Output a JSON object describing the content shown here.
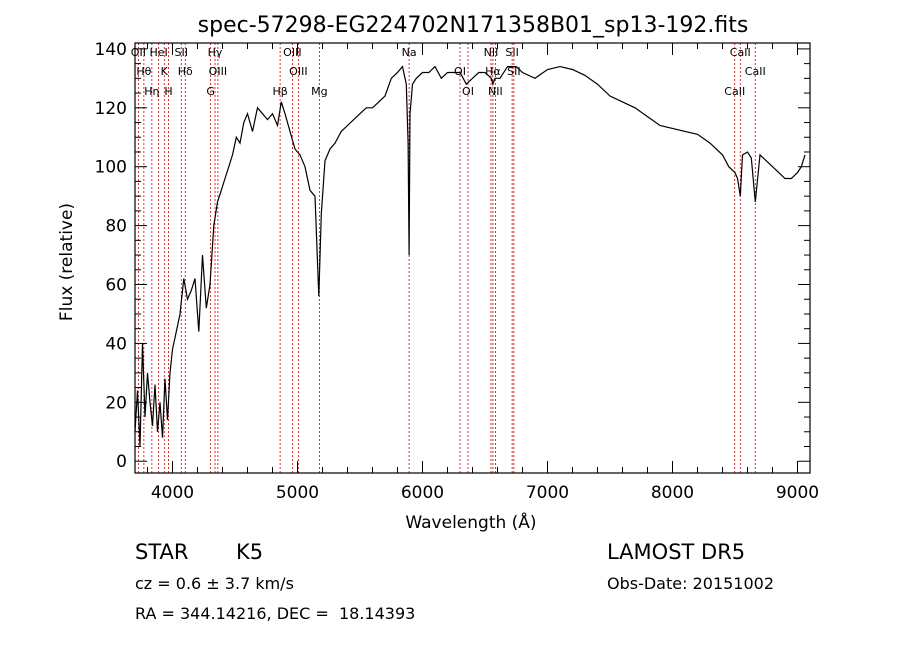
{
  "chart_data": {
    "type": "line",
    "title": "spec-57298-EG224702N171358B01_sp13-192.fits",
    "xlabel": "Wavelength (Å)",
    "ylabel": "Flux (relative)",
    "xlim": [
      3700,
      9100
    ],
    "ylim": [
      -4,
      142
    ],
    "x_ticks": [
      4000,
      5000,
      6000,
      7000,
      8000,
      9000
    ],
    "y_ticks": [
      0,
      20,
      40,
      60,
      80,
      100,
      120,
      140
    ],
    "grid": false,
    "series": [
      {
        "x": [
          3700,
          3720,
          3740,
          3760,
          3780,
          3800,
          3820,
          3840,
          3860,
          3880,
          3900,
          3920,
          3940,
          3960,
          3980,
          4000,
          4030,
          4060,
          4090,
          4120,
          4150,
          4180,
          4210,
          4240,
          4270,
          4300,
          4330,
          4360,
          4390,
          4420,
          4450,
          4480,
          4510,
          4540,
          4570,
          4600,
          4640,
          4680,
          4720,
          4760,
          4800,
          4840,
          4870,
          4900,
          4940,
          4980,
          5020,
          5060,
          5100,
          5140,
          5170,
          5190,
          5220,
          5260,
          5300,
          5350,
          5400,
          5450,
          5500,
          5550,
          5600,
          5650,
          5700,
          5750,
          5800,
          5840,
          5870,
          5885,
          5893,
          5900,
          5920,
          5950,
          6000,
          6050,
          6100,
          6150,
          6200,
          6250,
          6300,
          6350,
          6400,
          6450,
          6500,
          6550,
          6563,
          6580,
          6620,
          6680,
          6750,
          6800,
          6900,
          7000,
          7100,
          7200,
          7300,
          7400,
          7500,
          7600,
          7700,
          7800,
          7900,
          8000,
          8100,
          8200,
          8300,
          8400,
          8450,
          8500,
          8520,
          8542,
          8560,
          8600,
          8630,
          8662,
          8700,
          8750,
          8800,
          8850,
          8900,
          8950,
          9000,
          9030,
          9060
        ],
        "y": [
          10,
          24,
          5,
          40,
          15,
          30,
          20,
          12,
          26,
          10,
          20,
          8,
          28,
          14,
          30,
          38,
          44,
          50,
          62,
          55,
          58,
          62,
          44,
          70,
          52,
          60,
          80,
          88,
          92,
          96,
          100,
          104,
          110,
          108,
          115,
          118,
          112,
          120,
          118,
          116,
          118,
          114,
          122,
          118,
          112,
          106,
          104,
          100,
          92,
          90,
          56,
          84,
          102,
          106,
          108,
          112,
          114,
          116,
          118,
          120,
          120,
          122,
          124,
          130,
          132,
          134,
          128,
          108,
          70,
          118,
          128,
          130,
          132,
          132,
          134,
          130,
          132,
          132,
          132,
          128,
          130,
          132,
          132,
          130,
          128,
          130,
          130,
          134,
          134,
          132,
          130,
          133,
          134,
          133,
          131,
          128,
          124,
          122,
          120,
          117,
          114,
          113,
          112,
          111,
          108,
          104,
          100,
          98,
          96,
          90,
          104,
          105,
          103,
          88,
          104,
          102,
          100,
          98,
          96,
          96,
          98,
          100,
          104
        ]
      }
    ],
    "line_markers": [
      {
        "label": "OII",
        "x": 3727
      },
      {
        "label": "Hθ",
        "x": 3771
      },
      {
        "label": "Hη",
        "x": 3835
      },
      {
        "label": "HeI",
        "x": 3889
      },
      {
        "label": "K",
        "x": 3934
      },
      {
        "label": "H",
        "x": 3968
      },
      {
        "label": "SII",
        "x": 4070
      },
      {
        "label": "Hδ",
        "x": 4102
      },
      {
        "label": "G",
        "x": 4305
      },
      {
        "label": "Hγ",
        "x": 4340
      },
      {
        "label": "OIII",
        "x": 4363
      },
      {
        "label": "Hβ",
        "x": 4861
      },
      {
        "label": "OIII",
        "x": 4959
      },
      {
        "label": "OIII",
        "x": 5007
      },
      {
        "label": "Mg",
        "x": 5175
      },
      {
        "label": "Na",
        "x": 5893
      },
      {
        "label": "OI",
        "x": 6300
      },
      {
        "label": "OI",
        "x": 6364
      },
      {
        "label": "NII",
        "x": 6548
      },
      {
        "label": "Hα",
        "x": 6563
      },
      {
        "label": "NII",
        "x": 6583
      },
      {
        "label": "SII",
        "x": 6717
      },
      {
        "label": "SII",
        "x": 6731
      },
      {
        "label": "CaII",
        "x": 8498
      },
      {
        "label": "CaII",
        "x": 8542
      },
      {
        "label": "CaII",
        "x": 8662
      }
    ]
  },
  "info": {
    "class_label": "STAR",
    "subclass": "K5",
    "survey": "LAMOST DR5",
    "cz_line": "cz = 0.6 ± 3.7 km/s",
    "obs_date": "Obs-Date: 20151002",
    "coords": "RA = 344.14216, DEC =  18.14393"
  },
  "colors": {
    "spectrum": "#000000",
    "markers": "#cc0000"
  }
}
